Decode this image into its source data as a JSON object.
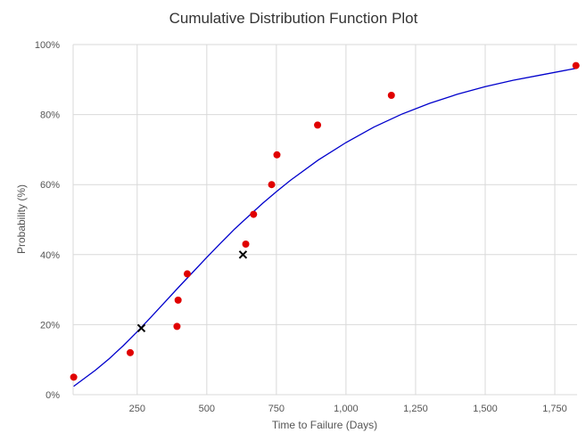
{
  "chart_data": {
    "type": "scatter",
    "title": "Cumulative Distribution Function Plot",
    "xlabel": "Time to Failure (Days)",
    "ylabel": "Probability (%)",
    "xlim": [
      20,
      1830
    ],
    "ylim": [
      0,
      100
    ],
    "x_ticks": [
      250,
      500,
      750,
      1000,
      1250,
      1500,
      1750
    ],
    "x_tick_labels": [
      "250",
      "500",
      "750",
      "1,000",
      "1,250",
      "1,500",
      "1,750"
    ],
    "y_ticks": [
      0,
      20,
      40,
      60,
      80,
      100
    ],
    "y_tick_labels": [
      "0%",
      "20%",
      "40%",
      "60%",
      "80%",
      "100%"
    ],
    "grid": true,
    "legend": "none",
    "series": [
      {
        "kind": "points",
        "color": "#e00000",
        "marker": "circle",
        "x": [
          22,
          225,
          393,
          397,
          430,
          640,
          668,
          733,
          752,
          898,
          1163,
          1826
        ],
        "y": [
          5,
          12,
          19.5,
          27,
          34.5,
          43,
          51.5,
          60,
          68.5,
          77,
          85.5,
          94
        ]
      },
      {
        "kind": "points",
        "color": "#000000",
        "marker": "x",
        "x": [
          265,
          630
        ],
        "y": [
          19,
          40
        ]
      },
      {
        "kind": "line",
        "color": "#0000cc",
        "x": [
          22,
          100,
          150,
          200,
          250,
          300,
          350,
          400,
          450,
          500,
          550,
          600,
          650,
          700,
          750,
          800,
          900,
          1000,
          1100,
          1200,
          1300,
          1400,
          1500,
          1600,
          1700,
          1826
        ],
        "y": [
          2.4,
          7,
          10.3,
          14,
          18,
          22.2,
          26.5,
          30.8,
          35,
          39.2,
          43.3,
          47.3,
          51,
          54.6,
          58,
          61.2,
          67,
          72,
          76.4,
          80.1,
          83.2,
          85.8,
          88,
          89.8,
          91.3,
          93.2
        ]
      }
    ]
  }
}
